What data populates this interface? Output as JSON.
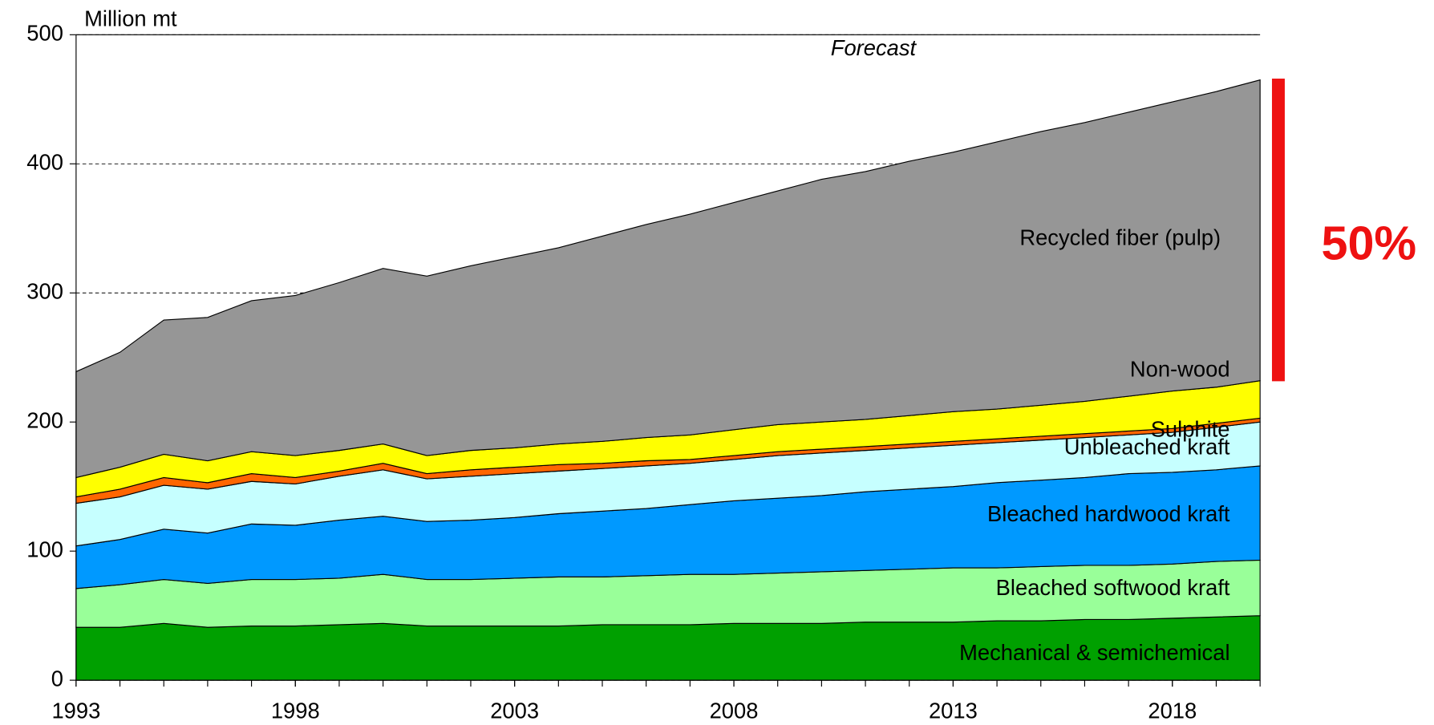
{
  "chart_data": {
    "type": "stacked_area",
    "y_label": "Million mt",
    "annotations": [
      "Forecast",
      "50%"
    ],
    "x": [
      1993,
      1994,
      1995,
      1996,
      1997,
      1998,
      1999,
      2000,
      2001,
      2002,
      2003,
      2004,
      2005,
      2006,
      2007,
      2008,
      2009,
      2010,
      2011,
      2012,
      2013,
      2014,
      2015,
      2016,
      2017,
      2018,
      2019,
      2020
    ],
    "xlim": [
      1993,
      2020
    ],
    "xticks": [
      1993,
      1998,
      2003,
      2008,
      2013,
      2018
    ],
    "ylim": [
      0,
      500
    ],
    "yticks": [
      0,
      100,
      200,
      300,
      400,
      500
    ],
    "grid": true,
    "series": [
      {
        "name": "Mechanical & semichemical",
        "color": "#00a000",
        "values": [
          41,
          41,
          44,
          41,
          42,
          42,
          43,
          44,
          42,
          42,
          42,
          42,
          43,
          43,
          43,
          44,
          44,
          44,
          45,
          45,
          45,
          46,
          46,
          47,
          47,
          48,
          49,
          50
        ]
      },
      {
        "name": "Bleached softwood kraft",
        "color": "#99ff99",
        "values": [
          30,
          33,
          34,
          34,
          36,
          36,
          36,
          38,
          36,
          36,
          37,
          38,
          37,
          38,
          39,
          38,
          39,
          40,
          40,
          41,
          42,
          41,
          42,
          42,
          42,
          42,
          43,
          43
        ]
      },
      {
        "name": "Bleached hardwood kraft",
        "color": "#0099ff",
        "values": [
          33,
          35,
          39,
          39,
          43,
          42,
          45,
          45,
          45,
          46,
          47,
          49,
          51,
          52,
          54,
          57,
          58,
          59,
          61,
          62,
          63,
          66,
          67,
          68,
          71,
          71,
          71,
          73
        ]
      },
      {
        "name": "Unbleached kraft",
        "color": "#c6ffff",
        "values": [
          33,
          33,
          34,
          34,
          33,
          32,
          34,
          36,
          33,
          34,
          34,
          33,
          33,
          33,
          32,
          32,
          33,
          33,
          32,
          32,
          32,
          31,
          31,
          31,
          30,
          31,
          33,
          34
        ]
      },
      {
        "name": "Sulphite",
        "color": "#ff6600",
        "values": [
          5,
          6,
          6,
          5,
          6,
          5,
          4,
          5,
          4,
          5,
          5,
          5,
          4,
          4,
          3,
          3,
          3,
          3,
          3,
          3,
          3,
          3,
          3,
          3,
          3,
          3,
          3,
          3
        ]
      },
      {
        "name": "Non-wood",
        "color": "#ffff00",
        "values": [
          15,
          17,
          18,
          17,
          17,
          17,
          16,
          15,
          14,
          15,
          15,
          16,
          17,
          18,
          19,
          20,
          21,
          21,
          21,
          22,
          23,
          23,
          24,
          25,
          27,
          29,
          28,
          29
        ]
      },
      {
        "name": "Recycled fiber (pulp)",
        "color": "#969696",
        "values": [
          82,
          89,
          104,
          111,
          117,
          124,
          130,
          136,
          139,
          143,
          148,
          152,
          159,
          165,
          171,
          176,
          181,
          188,
          192,
          197,
          201,
          207,
          212,
          216,
          220,
          224,
          229,
          233
        ]
      }
    ]
  }
}
